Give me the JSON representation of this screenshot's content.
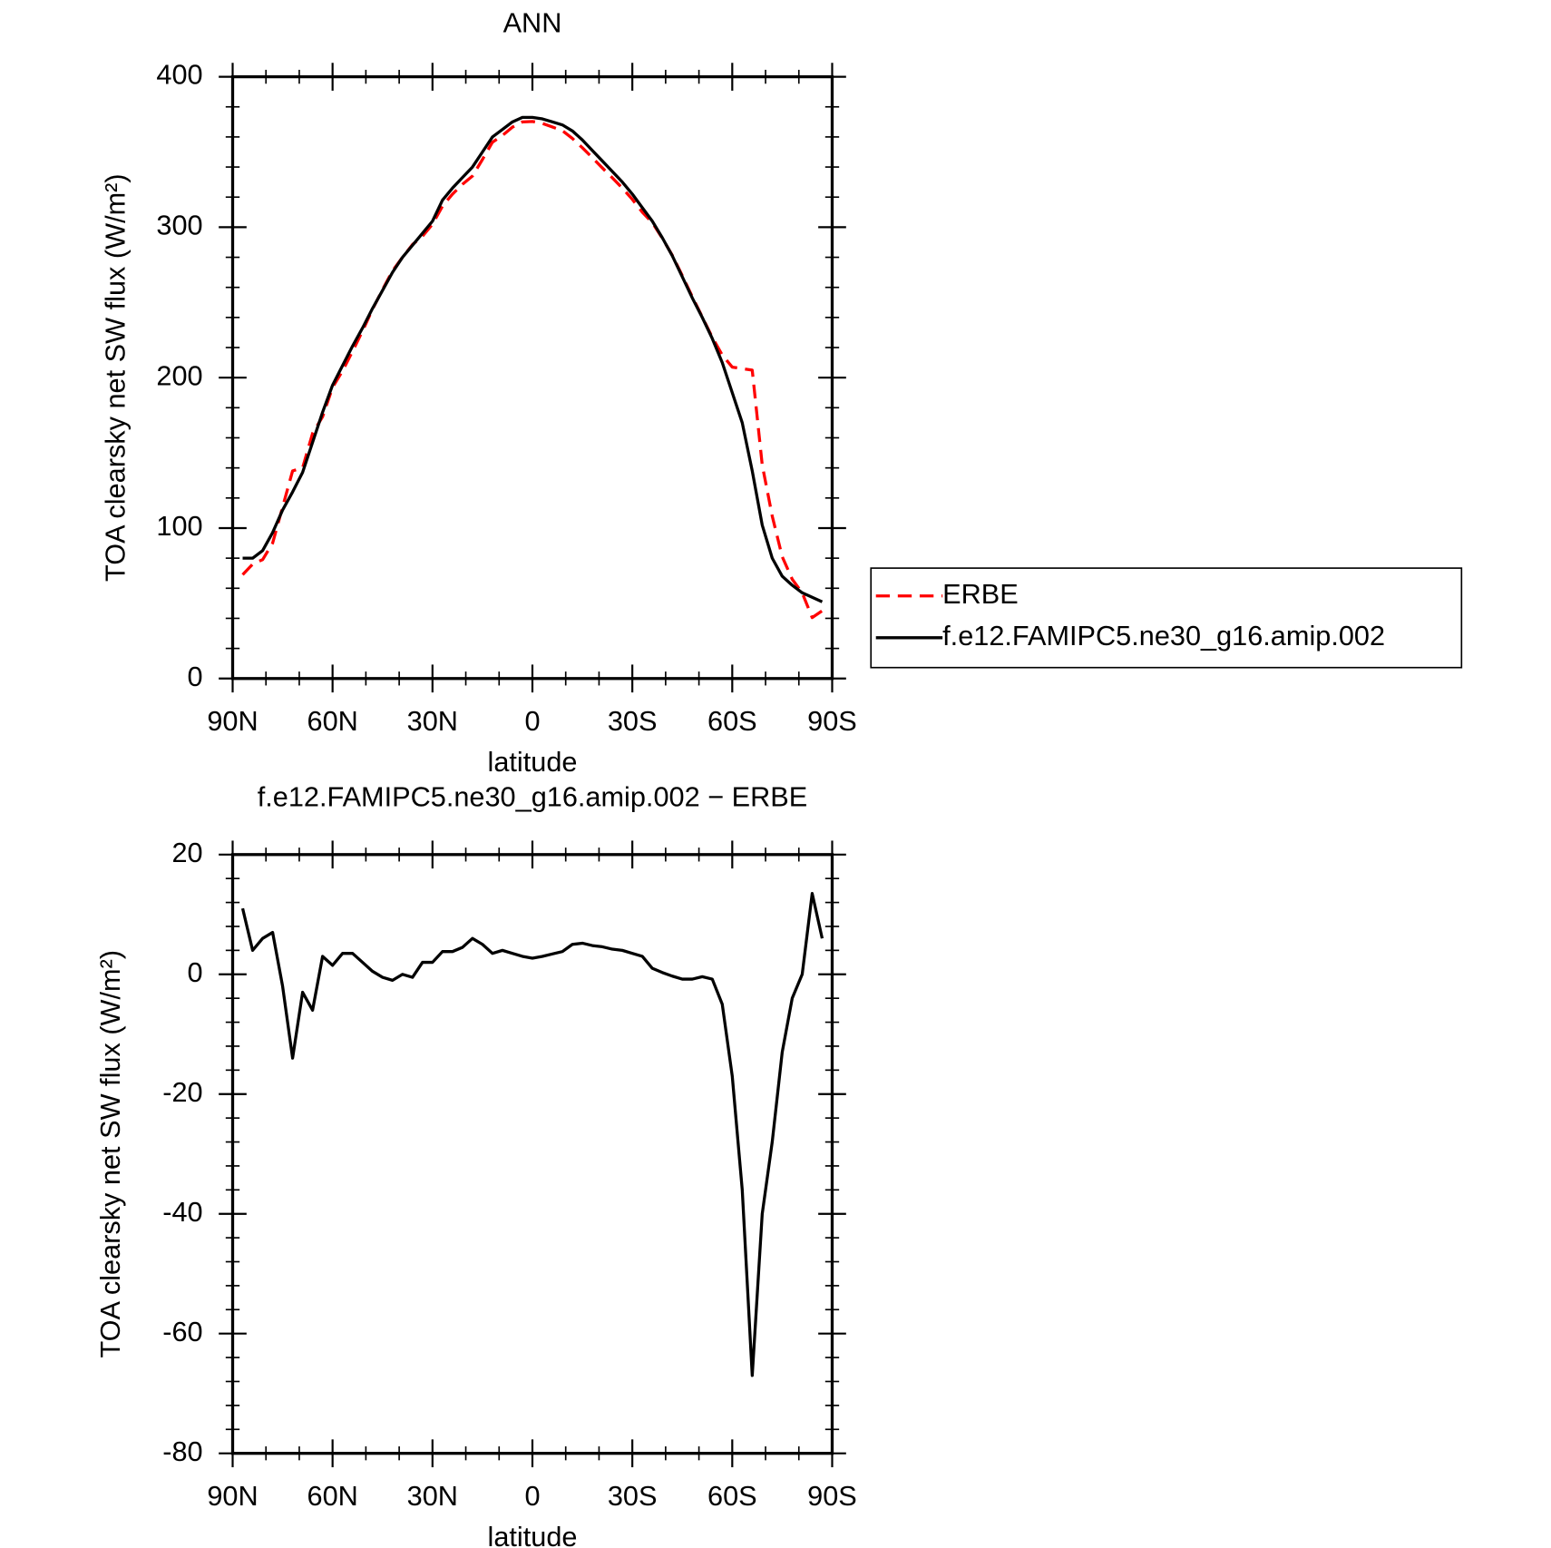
{
  "chart_data": [
    {
      "type": "line",
      "title": "ANN",
      "x_label": "latitude",
      "y_label": "TOA clearsky net SW flux (W/m²)",
      "x": [
        87,
        84,
        81,
        78,
        75,
        72,
        69,
        66,
        63,
        60,
        57,
        54,
        51,
        48,
        45,
        42,
        39,
        36,
        33,
        30,
        27,
        24,
        21,
        18,
        15,
        12,
        9,
        6,
        3,
        0,
        -3,
        -6,
        -9,
        -12,
        -15,
        -18,
        -21,
        -24,
        -27,
        -30,
        -33,
        -36,
        -39,
        -42,
        -45,
        -48,
        -51,
        -54,
        -57,
        -60,
        -63,
        -66,
        -69,
        -72,
        -75,
        -78,
        -81,
        -84,
        -87
      ],
      "series": [
        {
          "name": "ERBE",
          "color": "#ff0000",
          "line_style": "dashed",
          "values": [
            69,
            76,
            79,
            90,
            114,
            138,
            140,
            163,
            174,
            193.5,
            204.5,
            217.5,
            231,
            245.5,
            258.5,
            271,
            280,
            288.5,
            294,
            302,
            314,
            322,
            328.5,
            334,
            345,
            356.5,
            361,
            366.5,
            370,
            370.3,
            369,
            366.6,
            364.2,
            359,
            352.8,
            346.2,
            339.4,
            332.8,
            326,
            318.5,
            310,
            303,
            292.7,
            281.3,
            267.8,
            253.8,
            240.4,
            226.8,
            215,
            207,
            206,
            205,
            142,
            108,
            81,
            66,
            57,
            40.5,
            45
          ]
        },
        {
          "name": "f.e12.FAMIPC5.ne30_g16.amip.002",
          "color": "#000000",
          "line_style": "solid",
          "values": [
            80,
            80,
            85,
            97,
            112,
            124,
            137,
            157,
            177,
            195,
            208,
            221,
            233,
            246,
            258,
            270,
            280,
            288,
            296,
            304,
            318,
            326,
            333,
            340,
            350,
            360,
            365,
            370,
            373,
            373,
            372,
            370,
            368,
            364,
            358,
            351,
            344,
            337,
            330,
            322,
            313,
            304,
            293,
            281,
            267,
            253,
            240,
            226,
            210,
            190,
            170,
            138,
            102,
            80,
            68,
            62,
            57,
            54,
            51
          ]
        }
      ],
      "xlim": [
        90,
        -90
      ],
      "xticks": [
        {
          "value": 90,
          "label": "90N"
        },
        {
          "value": 60,
          "label": "60N"
        },
        {
          "value": 30,
          "label": "30N"
        },
        0,
        {
          "value": -30,
          "label": "30S"
        },
        {
          "value": -60,
          "label": "60S"
        },
        {
          "value": -90,
          "label": "90S"
        }
      ],
      "ylim": [
        0,
        400
      ],
      "yticks": [
        0,
        100,
        200,
        300,
        400
      ],
      "legend": "right"
    },
    {
      "type": "line",
      "title": "f.e12.FAMIPC5.ne30_g16.amip.002 − ERBE",
      "x_label": "latitude",
      "y_label": "TOA clearsky net SW flux (W/m²)",
      "x": [
        87,
        84,
        81,
        78,
        75,
        72,
        69,
        66,
        63,
        60,
        57,
        54,
        51,
        48,
        45,
        42,
        39,
        36,
        33,
        30,
        27,
        24,
        21,
        18,
        15,
        12,
        9,
        6,
        3,
        0,
        -3,
        -6,
        -9,
        -12,
        -15,
        -18,
        -21,
        -24,
        -27,
        -30,
        -33,
        -36,
        -39,
        -42,
        -45,
        -48,
        -51,
        -54,
        -57,
        -60,
        -63,
        -66,
        -69,
        -72,
        -75,
        -78,
        -81,
        -84,
        -87
      ],
      "color": "#000000",
      "values": [
        11,
        4,
        6,
        7,
        -2,
        -14,
        -3,
        -6,
        3,
        1.5,
        3.5,
        3.5,
        2,
        0.5,
        -0.5,
        -1,
        0,
        -0.5,
        2,
        2,
        3.8,
        3.8,
        4.5,
        6,
        5,
        3.5,
        4,
        3.5,
        3,
        2.7,
        3,
        3.4,
        3.8,
        5,
        5.2,
        4.8,
        4.6,
        4.2,
        4,
        3.5,
        3,
        1,
        0.3,
        -0.3,
        -0.8,
        -0.8,
        -0.4,
        -0.8,
        -5,
        -17,
        -36,
        -67,
        -40,
        -28,
        -13,
        -4,
        0,
        13.5,
        6
      ],
      "xlim": [
        90,
        -90
      ],
      "xticks": [
        {
          "value": 90,
          "label": "90N"
        },
        {
          "value": 60,
          "label": "60N"
        },
        {
          "value": 30,
          "label": "30N"
        },
        0,
        {
          "value": -30,
          "label": "30S"
        },
        {
          "value": -60,
          "label": "60S"
        },
        {
          "value": -90,
          "label": "90S"
        }
      ],
      "ylim": [
        -80,
        20
      ],
      "yticks": [
        -80,
        -60,
        -40,
        -20,
        0,
        20
      ]
    }
  ]
}
